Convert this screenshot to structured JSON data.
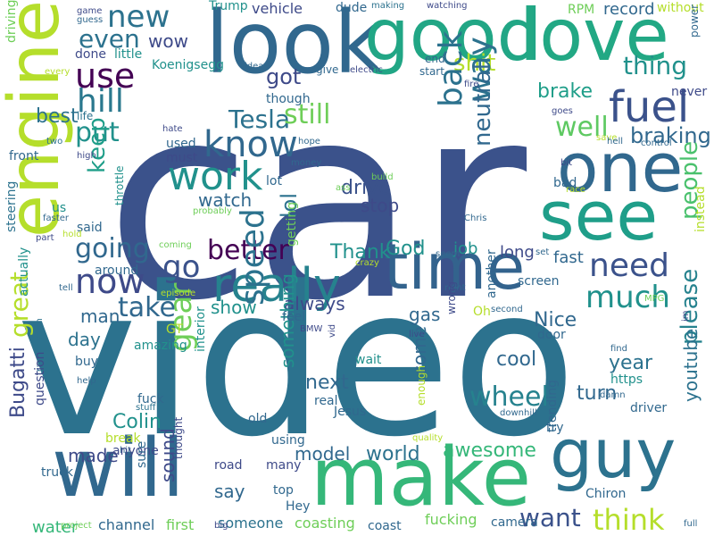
{
  "words": [
    {
      "text": "car",
      "color": "#3b528b"
    },
    {
      "text": "video",
      "color": "#2c728e"
    },
    {
      "text": "engine",
      "color": "#b5de2b"
    },
    {
      "text": "make",
      "color": "#35b779"
    },
    {
      "text": "will",
      "color": "#31688e"
    },
    {
      "text": "look",
      "color": "#31688e"
    },
    {
      "text": "good",
      "color": "#21a685"
    },
    {
      "text": "love",
      "color": "#22a884"
    },
    {
      "text": "one",
      "color": "#31688e"
    },
    {
      "text": "see",
      "color": "#1f9e89"
    },
    {
      "text": "guy",
      "color": "#2c728e"
    },
    {
      "text": "time",
      "color": "#33638d"
    },
    {
      "text": "really",
      "color": "#26828e"
    },
    {
      "text": "know",
      "color": "#31688e"
    },
    {
      "text": "work",
      "color": "#21918c"
    },
    {
      "text": "fuel",
      "color": "#3b528b"
    },
    {
      "text": "new",
      "color": "#2c728e"
    },
    {
      "text": "use",
      "color": "#440154"
    },
    {
      "text": "hill",
      "color": "#2a788e"
    },
    {
      "text": "even",
      "color": "#2c728e"
    },
    {
      "text": "wow",
      "color": "#3e4a89"
    },
    {
      "text": "shit",
      "color": "#b5de2b"
    },
    {
      "text": "thing",
      "color": "#21918c"
    },
    {
      "text": "way",
      "color": "#2c728e"
    },
    {
      "text": "back",
      "color": "#2c728e"
    },
    {
      "text": "Tesla",
      "color": "#2c728e"
    },
    {
      "text": "got",
      "color": "#3e4a89"
    },
    {
      "text": "put",
      "color": "#21918c"
    },
    {
      "text": "go",
      "color": "#3b528b"
    },
    {
      "text": "now",
      "color": "#3e4a89"
    },
    {
      "text": "still",
      "color": "#6ece58"
    },
    {
      "text": "well",
      "color": "#5ec962"
    },
    {
      "text": "braking",
      "color": "#31688e"
    },
    {
      "text": "brake",
      "color": "#1f9e89"
    },
    {
      "text": "neutral",
      "color": "#31688e"
    },
    {
      "text": "need",
      "color": "#3b528b"
    },
    {
      "text": "much",
      "color": "#21918c"
    },
    {
      "text": "people",
      "color": "#4ac16d"
    },
    {
      "text": "better",
      "color": "#440154"
    },
    {
      "text": "going",
      "color": "#31688e"
    },
    {
      "text": "keep",
      "color": "#1f9e89"
    },
    {
      "text": "best",
      "color": "#2c728e"
    },
    {
      "text": "great",
      "color": "#b5de2b"
    },
    {
      "text": "speed",
      "color": "#2c728e"
    },
    {
      "text": "gear",
      "color": "#6ece58"
    },
    {
      "text": "take",
      "color": "#31688e"
    },
    {
      "text": "wheel",
      "color": "#26828e"
    },
    {
      "text": "think",
      "color": "#b5de2b"
    },
    {
      "text": "want",
      "color": "#3b528b"
    },
    {
      "text": "please",
      "color": "#26828e"
    },
    {
      "text": "lol",
      "color": "#2c728e"
    },
    {
      "text": "drive",
      "color": "#3b528b"
    },
    {
      "text": "stop",
      "color": "#3e4a89"
    },
    {
      "text": "watch",
      "color": "#31688e"
    },
    {
      "text": "Thank",
      "color": "#21918c"
    },
    {
      "text": "God",
      "color": "#21918c"
    },
    {
      "text": "show",
      "color": "#21918c"
    },
    {
      "text": "man",
      "color": "#31688e"
    },
    {
      "text": "day",
      "color": "#2c728e"
    },
    {
      "text": "Bugatti",
      "color": "#3e4a89"
    },
    {
      "text": "youtube",
      "color": "#2c728e"
    },
    {
      "text": "year",
      "color": "#2c728e"
    },
    {
      "text": "cool",
      "color": "#31688e"
    },
    {
      "text": "next",
      "color": "#31688e"
    },
    {
      "text": "turn",
      "color": "#31688e"
    },
    {
      "text": "always",
      "color": "#3e4a89"
    },
    {
      "text": "Nice",
      "color": "#31688e"
    },
    {
      "text": "gas",
      "color": "#31688e"
    },
    {
      "text": "awesome",
      "color": "#35b779"
    },
    {
      "text": "world",
      "color": "#2c728e"
    },
    {
      "text": "Colin",
      "color": "#21918c"
    },
    {
      "text": "made",
      "color": "#3e4a89"
    },
    {
      "text": "model",
      "color": "#31688e"
    },
    {
      "text": "sound",
      "color": "#3e4a89"
    },
    {
      "text": "say",
      "color": "#31688e"
    },
    {
      "text": "something",
      "color": "#21918c"
    },
    {
      "text": "come",
      "color": "#31688e"
    },
    {
      "text": "fast",
      "color": "#31688e"
    },
    {
      "text": "long",
      "color": "#3e4a89"
    },
    {
      "text": "job",
      "color": "#21918c"
    },
    {
      "text": "water",
      "color": "#35b779"
    },
    {
      "text": "channel",
      "color": "#31688e"
    },
    {
      "text": "first",
      "color": "#6ece58"
    },
    {
      "text": "someone",
      "color": "#2c728e"
    },
    {
      "text": "coasting",
      "color": "#6ece58"
    },
    {
      "text": "coast",
      "color": "#31688e"
    },
    {
      "text": "fucking",
      "color": "#6ece58"
    },
    {
      "text": "camera",
      "color": "#31688e"
    },
    {
      "text": "Chiron",
      "color": "#31688e"
    },
    {
      "text": "record",
      "color": "#31688e"
    },
    {
      "text": "RPM",
      "color": "#6ece58"
    },
    {
      "text": "vehicle",
      "color": "#3e4a89"
    },
    {
      "text": "Trump",
      "color": "#21918c"
    },
    {
      "text": "dude",
      "color": "#31688e"
    },
    {
      "text": "making",
      "color": "#2c728e"
    },
    {
      "text": "watching",
      "color": "#3e4a89"
    },
    {
      "text": "without",
      "color": "#b5de2b"
    },
    {
      "text": "power",
      "color": "#31688e"
    },
    {
      "text": "end",
      "color": "#31688e"
    },
    {
      "text": "start",
      "color": "#31688e"
    },
    {
      "text": "give",
      "color": "#31688e"
    },
    {
      "text": "electric",
      "color": "#3e4a89"
    },
    {
      "text": "Koenigsegg",
      "color": "#21918c"
    },
    {
      "text": "idea",
      "color": "#31688e"
    },
    {
      "text": "little",
      "color": "#21918c"
    },
    {
      "text": "done",
      "color": "#3e4a89"
    },
    {
      "text": "life",
      "color": "#2c728e"
    },
    {
      "text": "every",
      "color": "#b5de2b"
    },
    {
      "text": "game",
      "color": "#3e4a89"
    },
    {
      "text": "guess",
      "color": "#31688e"
    },
    {
      "text": "driving",
      "color": "#6ece58"
    },
    {
      "text": "though",
      "color": "#31688e"
    },
    {
      "text": "fire",
      "color": "#3e4a89"
    },
    {
      "text": "never",
      "color": "#3e4a89"
    },
    {
      "text": "goes",
      "color": "#3e4a89"
    },
    {
      "text": "control",
      "color": "#31688e"
    },
    {
      "text": "save",
      "color": "#b5de2b"
    },
    {
      "text": "hell",
      "color": "#31688e"
    },
    {
      "text": "used",
      "color": "#31688e"
    },
    {
      "text": "must",
      "color": "#3e4a89"
    },
    {
      "text": "hate",
      "color": "#3e4a89"
    },
    {
      "text": "hope",
      "color": "#31688e"
    },
    {
      "text": "two",
      "color": "#2c728e"
    },
    {
      "text": "high",
      "color": "#3e4a89"
    },
    {
      "text": "front",
      "color": "#31688e"
    },
    {
      "text": "bad",
      "color": "#31688e"
    },
    {
      "text": "bit",
      "color": "#3e4a89"
    },
    {
      "text": "race",
      "color": "#b5de2b"
    },
    {
      "text": "money",
      "color": "#31688e"
    },
    {
      "text": "lot",
      "color": "#31688e"
    },
    {
      "text": "build",
      "color": "#6ece58"
    },
    {
      "text": "ass",
      "color": "#6ece58"
    },
    {
      "text": "steering",
      "color": "#2c728e"
    },
    {
      "text": "faster",
      "color": "#31688e"
    },
    {
      "text": "us",
      "color": "#21918c"
    },
    {
      "text": "throttle",
      "color": "#21918c"
    },
    {
      "text": "probably",
      "color": "#6ece58"
    },
    {
      "text": "Chris",
      "color": "#31688e"
    },
    {
      "text": "instead",
      "color": "#b5de2b"
    },
    {
      "text": "actually",
      "color": "#21918c"
    },
    {
      "text": "said",
      "color": "#31688e"
    },
    {
      "text": "part",
      "color": "#3e4a89"
    },
    {
      "text": "hold",
      "color": "#b5de2b"
    },
    {
      "text": "coming",
      "color": "#6ece58"
    },
    {
      "text": "getting",
      "color": "#6ece58"
    },
    {
      "text": "crazy",
      "color": "#b5de2b"
    },
    {
      "text": "seem",
      "color": "#31688e"
    },
    {
      "text": "another",
      "color": "#31688e"
    },
    {
      "text": "set",
      "color": "#31688e"
    },
    {
      "text": "screen",
      "color": "#31688e"
    },
    {
      "text": "MPG",
      "color": "#6ece58"
    },
    {
      "text": "around",
      "color": "#31688e"
    },
    {
      "text": "tell",
      "color": "#31688e"
    },
    {
      "text": "episode",
      "color": "#b5de2b"
    },
    {
      "text": "right",
      "color": "#31688e"
    },
    {
      "text": "wrong",
      "color": "#3e4a89"
    },
    {
      "text": "second",
      "color": "#31688e"
    },
    {
      "text": "Oh",
      "color": "#b5de2b"
    },
    {
      "text": "feel",
      "color": "#31688e"
    },
    {
      "text": "BMW",
      "color": "#3e4a89"
    },
    {
      "text": "im",
      "color": "#3e4a89"
    },
    {
      "text": "door",
      "color": "#31688e"
    },
    {
      "text": "live",
      "color": "#3e4a89"
    },
    {
      "text": "vid",
      "color": "#3e4a89"
    },
    {
      "text": "GT",
      "color": "#b5de2b"
    },
    {
      "text": "amazing",
      "color": "#21918c"
    },
    {
      "text": "interior",
      "color": "#21918c"
    },
    {
      "text": "buy",
      "color": "#31688e"
    },
    {
      "text": "help",
      "color": "#31688e"
    },
    {
      "text": "transmission",
      "color": "#2c728e"
    },
    {
      "text": "question",
      "color": "#3e4a89"
    },
    {
      "text": "fuck",
      "color": "#31688e"
    },
    {
      "text": "stuff",
      "color": "#2c728e"
    },
    {
      "text": "break",
      "color": "#b5de2b"
    },
    {
      "text": "hit",
      "color": "#31688e"
    },
    {
      "text": "anyone",
      "color": "#3e4a89"
    },
    {
      "text": "thought",
      "color": "#3e4a89"
    },
    {
      "text": "sure",
      "color": "#31688e"
    },
    {
      "text": "truck",
      "color": "#31688e"
    },
    {
      "text": "old",
      "color": "#31688e"
    },
    {
      "text": "road",
      "color": "#3e4a89"
    },
    {
      "text": "using",
      "color": "#31688e"
    },
    {
      "text": "many",
      "color": "#3e4a89"
    },
    {
      "text": "top",
      "color": "#31688e"
    },
    {
      "text": "Hey",
      "color": "#31688e"
    },
    {
      "text": "real",
      "color": "#31688e"
    },
    {
      "text": "Jesus",
      "color": "#31688e"
    },
    {
      "text": "enough",
      "color": "#b5de2b"
    },
    {
      "text": "quality",
      "color": "#b5de2b"
    },
    {
      "text": "downhill",
      "color": "#31688e"
    },
    {
      "text": "trending",
      "color": "#31688e"
    },
    {
      "text": "https",
      "color": "#21918c"
    },
    {
      "text": "damn",
      "color": "#31688e"
    },
    {
      "text": "driver",
      "color": "#31688e"
    },
    {
      "text": "try",
      "color": "#31688e"
    },
    {
      "text": "find",
      "color": "#31688e"
    },
    {
      "text": "wait",
      "color": "#21918c"
    },
    {
      "text": "full",
      "color": "#31688e"
    },
    {
      "text": "project",
      "color": "#6ece58"
    },
    {
      "text": "big",
      "color": "#3e4a89"
    }
  ]
}
